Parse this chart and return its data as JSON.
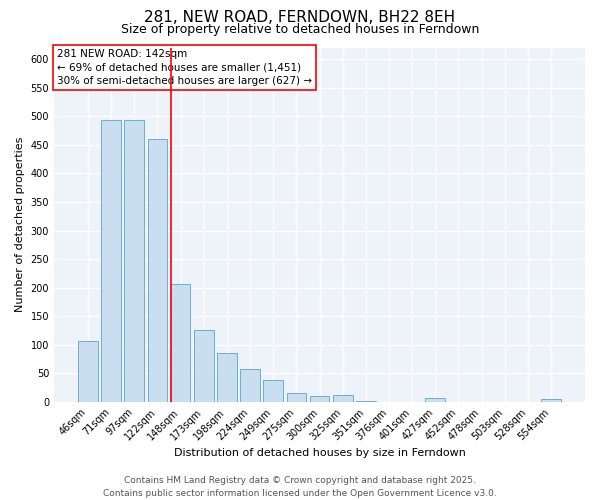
{
  "title": "281, NEW ROAD, FERNDOWN, BH22 8EH",
  "subtitle": "Size of property relative to detached houses in Ferndown",
  "xlabel": "Distribution of detached houses by size in Ferndown",
  "ylabel": "Number of detached properties",
  "categories": [
    "46sqm",
    "71sqm",
    "97sqm",
    "122sqm",
    "148sqm",
    "173sqm",
    "198sqm",
    "224sqm",
    "249sqm",
    "275sqm",
    "300sqm",
    "325sqm",
    "351sqm",
    "376sqm",
    "401sqm",
    "427sqm",
    "452sqm",
    "478sqm",
    "503sqm",
    "528sqm",
    "554sqm"
  ],
  "values": [
    107,
    493,
    493,
    460,
    207,
    126,
    85,
    57,
    39,
    16,
    10,
    13,
    2,
    0,
    0,
    7,
    0,
    0,
    0,
    0,
    6
  ],
  "bar_color": "#c9dff0",
  "bar_edge_color": "#6aafd6",
  "red_line_index": 4,
  "annotation_text": "281 NEW ROAD: 142sqm\n← 69% of detached houses are smaller (1,451)\n30% of semi-detached houses are larger (627) →",
  "annotation_box_color": "white",
  "annotation_box_edge_color": "red",
  "ylim": [
    0,
    620
  ],
  "yticks": [
    0,
    50,
    100,
    150,
    200,
    250,
    300,
    350,
    400,
    450,
    500,
    550,
    600
  ],
  "footer_line1": "Contains HM Land Registry data © Crown copyright and database right 2025.",
  "footer_line2": "Contains public sector information licensed under the Open Government Licence v3.0.",
  "background_color": "#eef2f9",
  "grid_color": "white",
  "title_fontsize": 11,
  "subtitle_fontsize": 9,
  "axis_label_fontsize": 8,
  "tick_fontsize": 7,
  "annotation_fontsize": 7.5,
  "footer_fontsize": 6.5
}
